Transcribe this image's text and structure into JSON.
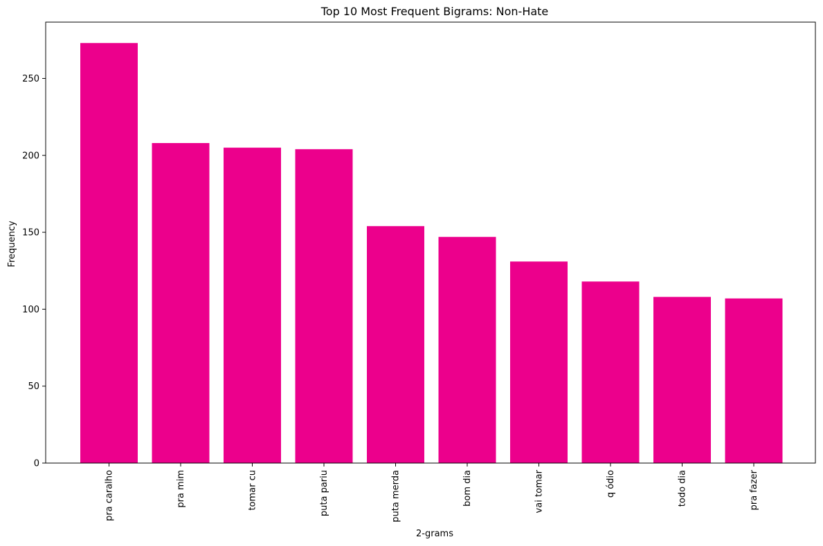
{
  "chart_data": {
    "type": "bar",
    "title": "Top 10 Most Frequent Bigrams: Non-Hate",
    "xlabel": "2-grams",
    "ylabel": "Frequency",
    "categories": [
      "pra caralho",
      "pra mim",
      "tomar cu",
      "puta pariu",
      "puta merda",
      "bom dia",
      "vai tomar",
      "q ódio",
      "todo dia",
      "pra fazer"
    ],
    "values": [
      273,
      208,
      205,
      204,
      154,
      147,
      131,
      118,
      108,
      107
    ],
    "ylim": [
      0,
      286.6
    ],
    "yticks": [
      0,
      50,
      100,
      150,
      200,
      250
    ],
    "bar_color": "#ec008c",
    "grid": false,
    "legend": "none"
  }
}
